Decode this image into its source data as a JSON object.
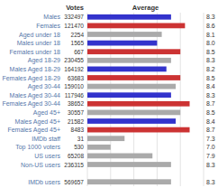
{
  "chart_data": {
    "type": "bar",
    "orientation": "horizontal",
    "categories": [
      "Males",
      "Females",
      "Aged under 18",
      "Males under 18",
      "Females under 18",
      "Aged 18-29",
      "Males Aged 18-29",
      "Females Aged 18-29",
      "Aged 30-44",
      "Males Aged 30-44",
      "Females Aged 30-44",
      "Aged 45+",
      "Males Aged 45+",
      "Females Aged 45+",
      "IMDb staff",
      "Top 1000 voters",
      "US users",
      "Non-US users",
      null,
      "IMDb users"
    ],
    "values": [
      8.3,
      8.6,
      8.1,
      8.0,
      8.5,
      8.3,
      8.2,
      8.5,
      8.4,
      8.3,
      8.7,
      8.5,
      8.4,
      8.7,
      7.3,
      7.0,
      7.9,
      8.3,
      null,
      8.3
    ],
    "value_labels": [
      "8.3",
      "8.6",
      "8.1",
      "8.0",
      "8.5",
      "8.3",
      "8.2",
      "8.5",
      "8.4",
      "8.3",
      "8.7",
      "8.5",
      "8.4",
      "8.7",
      "7.3",
      "7.0",
      "7.9",
      "8.3",
      null,
      "8.3"
    ],
    "votes": [
      332497,
      121470,
      2254,
      1565,
      667,
      230455,
      164192,
      63683,
      159010,
      117946,
      38652,
      30557,
      21582,
      8483,
      31,
      530,
      65208,
      236315,
      null,
      569657
    ],
    "votes_label": "Votes",
    "xlabel": "Average",
    "colors": [
      "#3333cc",
      "#cc3333",
      "#aaaaaa",
      "#3333cc",
      "#cc3333",
      "#aaaaaa",
      "#3333cc",
      "#cc3333",
      "#aaaaaa",
      "#3333cc",
      "#cc3333",
      "#aaaaaa",
      "#3333cc",
      "#cc3333",
      "#aaaaaa",
      "#aaaaaa",
      "#aaaaaa",
      "#aaaaaa",
      "#aaaaaa",
      "#aaaaaa"
    ],
    "xlim": [
      6.5,
      9.0
    ],
    "xticks": [
      6.5,
      7.0,
      7.5,
      8.0,
      8.5,
      9.0
    ],
    "grid": true,
    "data_labels": true,
    "tick_labels": false
  }
}
